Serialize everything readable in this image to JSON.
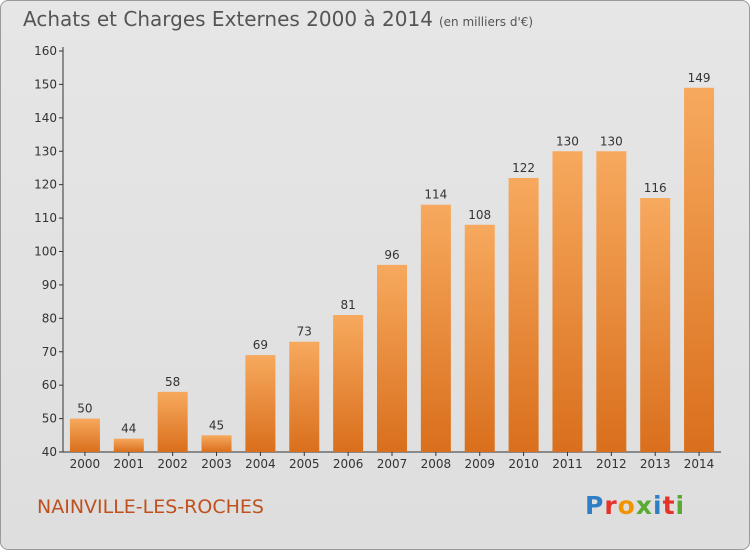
{
  "header": {
    "title": "Achats et Charges Externes 2000 à 2014",
    "unit": "(en milliers d'€)"
  },
  "footer": {
    "commune": "NAINVILLE-LES-ROCHES",
    "logo_letters": [
      {
        "ch": "P",
        "color": "#2f7fc6"
      },
      {
        "ch": "r",
        "color": "#e5332a"
      },
      {
        "ch": "o",
        "color": "#f29400"
      },
      {
        "ch": "x",
        "color": "#59a934"
      },
      {
        "ch": "i",
        "color": "#2f7fc6"
      },
      {
        "ch": "t",
        "color": "#e5332a"
      },
      {
        "ch": "i",
        "color": "#59a934"
      }
    ]
  },
  "colors": {
    "bar_top": "#f7a95e",
    "bar_bottom": "#d96f1c",
    "accent_text": "#c0501e"
  },
  "chart_data": {
    "type": "bar",
    "title": "Achats et Charges Externes 2000 à 2014",
    "subtitle": "(en milliers d'€)",
    "categories": [
      "2000",
      "2001",
      "2002",
      "2003",
      "2004",
      "2005",
      "2006",
      "2007",
      "2008",
      "2009",
      "2010",
      "2011",
      "2012",
      "2013",
      "2014"
    ],
    "values": [
      50,
      44,
      58,
      45,
      69,
      73,
      81,
      96,
      114,
      108,
      122,
      130,
      130,
      116,
      149
    ],
    "ylim": [
      40,
      160
    ],
    "yticks": [
      40,
      50,
      60,
      70,
      80,
      90,
      100,
      110,
      120,
      130,
      140,
      150,
      160
    ],
    "grid": false,
    "xlabel": "",
    "ylabel": ""
  }
}
